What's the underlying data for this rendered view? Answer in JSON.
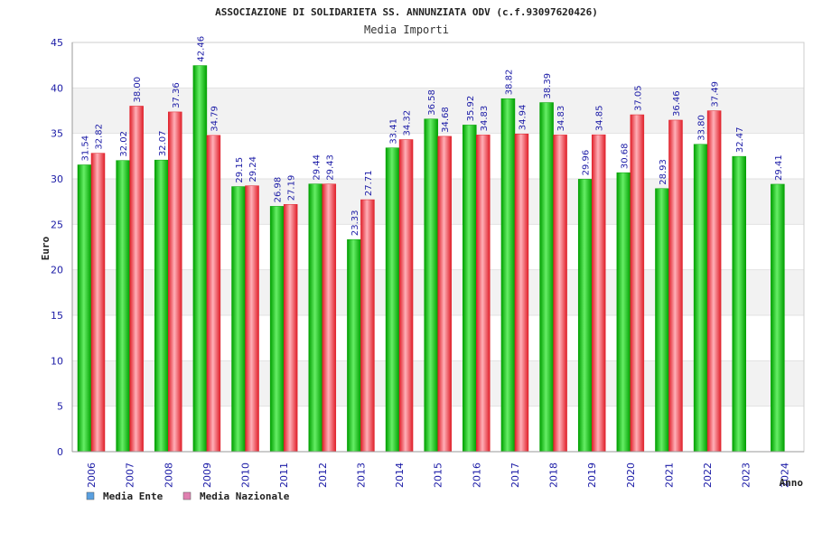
{
  "colors": {
    "ente": "#00a000",
    "ente_light": "#66ee66",
    "nazionale": "#e0202a",
    "nazionale_light": "#ffb0b8",
    "legend_ente": "#5aa0e0",
    "legend_nazionale": "#e080b0"
  },
  "chart_data": {
    "type": "bar",
    "title": "ASSOCIAZIONE DI SOLIDARIETA SS. ANNUNZIATA ODV (c.f.93097620426)",
    "subtitle": "Media Importi",
    "xlabel": "Anno",
    "ylabel": "Euro",
    "ylim": [
      0,
      45
    ],
    "yticks": [
      "0",
      "5",
      "10",
      "15",
      "20",
      "25",
      "30",
      "35",
      "40",
      "45"
    ],
    "categories": [
      "2006",
      "2007",
      "2008",
      "2009",
      "2010",
      "2011",
      "2012",
      "2013",
      "2014",
      "2015",
      "2016",
      "2017",
      "2018",
      "2019",
      "2020",
      "2021",
      "2022",
      "2023",
      "2024"
    ],
    "series": [
      {
        "name": "Media Ente",
        "values": [
          31.54,
          32.02,
          32.07,
          42.46,
          29.15,
          26.98,
          29.44,
          23.33,
          33.41,
          36.58,
          35.92,
          38.82,
          38.39,
          29.96,
          30.68,
          28.93,
          33.8,
          32.47,
          29.41
        ],
        "labels": [
          "31.54",
          "32.02",
          "32.07",
          "42.46",
          "29.15",
          "26.98",
          "29.44",
          "23.33",
          "33.41",
          "36.58",
          "35.92",
          "38.82",
          "38.39",
          "29.96",
          "30.68",
          "28.93",
          "33.80",
          "32.47",
          "29.41"
        ]
      },
      {
        "name": "Media Nazionale",
        "values": [
          32.82,
          38.0,
          37.36,
          34.79,
          29.24,
          27.19,
          29.43,
          27.71,
          34.32,
          34.68,
          34.83,
          34.94,
          34.83,
          34.85,
          37.05,
          36.46,
          37.49,
          null,
          null
        ],
        "labels": [
          "32.82",
          "38.00",
          "37.36",
          "34.79",
          "29.24",
          "27.19",
          "29.43",
          "27.71",
          "34.32",
          "34.68",
          "34.83",
          "34.94",
          "34.83",
          "34.85",
          "37.05",
          "36.46",
          "37.49",
          null,
          null
        ]
      }
    ],
    "legend": [
      {
        "name": "Media Ente",
        "color_key": "legend_ente"
      },
      {
        "name": "Media Nazionale",
        "color_key": "legend_nazionale"
      }
    ]
  }
}
